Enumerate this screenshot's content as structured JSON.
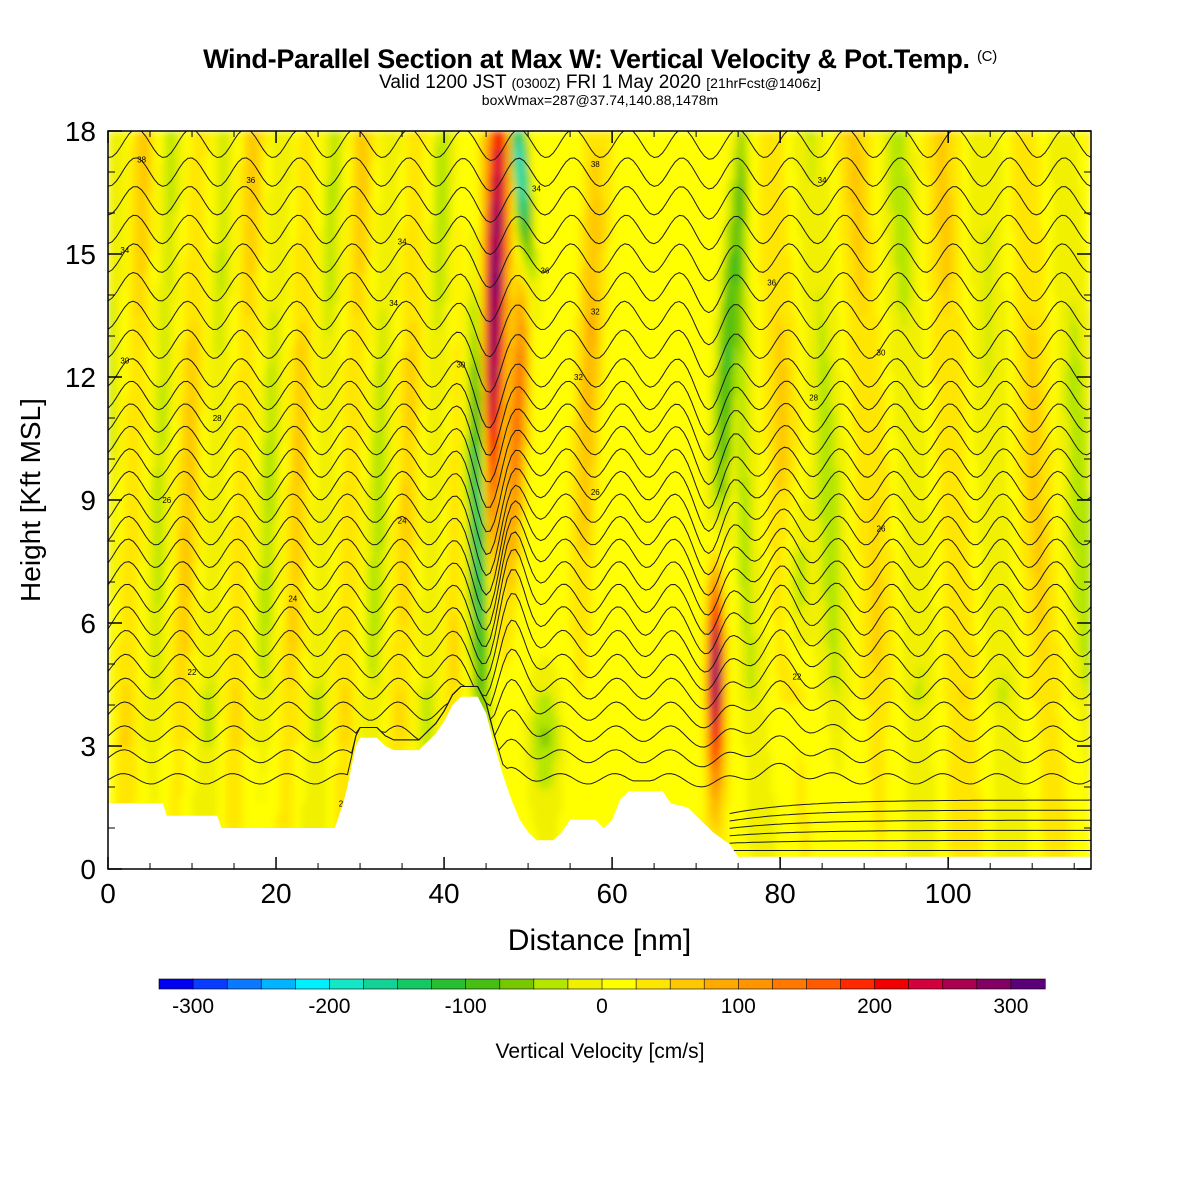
{
  "header": {
    "title": "Wind-Parallel Section at Max W: Vertical Velocity & Pot.Temp.",
    "copyright": "(C)",
    "valid_pre": "Valid 1200 JST",
    "valid_utc": "(0300Z)",
    "valid_date": "FRI 1 May 2020",
    "valid_fcst": "[21hrFcst@1406z]",
    "boxwmax": "boxWmax=287@37.74,140.88,1478m"
  },
  "chart_data": {
    "type": "heatmap",
    "xlabel": "Distance [nm]",
    "ylabel": "Height [Kft MSL]",
    "xlim": [
      0,
      117
    ],
    "ylim": [
      0,
      18
    ],
    "x_ticks": [
      "0",
      "20",
      "40",
      "60",
      "80",
      "100"
    ],
    "y_ticks": [
      "0",
      "3",
      "6",
      "9",
      "12",
      "15",
      "18"
    ],
    "colorbar": {
      "label": "Vertical Velocity [cm/s]",
      "tick_labels": [
        "-300",
        "-200",
        "-100",
        "0",
        "100",
        "200",
        "300"
      ],
      "levels": [
        -325,
        -300,
        -275,
        -250,
        -225,
        -200,
        -175,
        -150,
        -125,
        -100,
        -75,
        -50,
        -25,
        0,
        25,
        50,
        75,
        100,
        125,
        150,
        175,
        200,
        225,
        250,
        275,
        300,
        325
      ],
      "colors": [
        "#0000f0",
        "#0a3cff",
        "#0a78ff",
        "#00b4ff",
        "#00f0ff",
        "#14e6c8",
        "#14d296",
        "#14c864",
        "#28be32",
        "#46be14",
        "#78c800",
        "#b4e600",
        "#f0f000",
        "#ffff00",
        "#ffe600",
        "#ffc800",
        "#ffaa00",
        "#ff9600",
        "#ff7800",
        "#ff5a00",
        "#ff2800",
        "#f00000",
        "#d2003c",
        "#aa0050",
        "#820064",
        "#5a0078"
      ]
    },
    "terrain_kft": [
      [
        0,
        1.6
      ],
      [
        6.5,
        1.6
      ],
      [
        7,
        1.3
      ],
      [
        13,
        1.3
      ],
      [
        13.5,
        1.0
      ],
      [
        27,
        1.0
      ],
      [
        27.5,
        1.3
      ],
      [
        28,
        1.6
      ],
      [
        28.5,
        2.0
      ],
      [
        29,
        2.5
      ],
      [
        29.5,
        3.0
      ],
      [
        30,
        3.2
      ],
      [
        32,
        3.2
      ],
      [
        33,
        3.0
      ],
      [
        34,
        2.9
      ],
      [
        37,
        2.9
      ],
      [
        38,
        3.1
      ],
      [
        39,
        3.3
      ],
      [
        40,
        3.6
      ],
      [
        41,
        4.0
      ],
      [
        42,
        4.2
      ],
      [
        44,
        4.2
      ],
      [
        45,
        3.8
      ],
      [
        46,
        3.0
      ],
      [
        47,
        2.3
      ],
      [
        48,
        1.7
      ],
      [
        49,
        1.2
      ],
      [
        50,
        0.9
      ],
      [
        51,
        0.7
      ],
      [
        53,
        0.7
      ],
      [
        54,
        0.9
      ],
      [
        55,
        1.2
      ],
      [
        58,
        1.2
      ],
      [
        59,
        1.0
      ],
      [
        60,
        1.2
      ],
      [
        61,
        1.7
      ],
      [
        62,
        1.9
      ],
      [
        66,
        1.9
      ],
      [
        67,
        1.6
      ],
      [
        69,
        1.5
      ],
      [
        70,
        1.3
      ],
      [
        72,
        0.9
      ],
      [
        74,
        0.6
      ],
      [
        75,
        0.3
      ],
      [
        117,
        0.3
      ]
    ],
    "theta_contour_labels": [
      "16",
      "18",
      "20",
      "22",
      "24",
      "26",
      "28",
      "30",
      "32",
      "34",
      "36",
      "38"
    ],
    "vertical_velocity_features": [
      {
        "x": 45.5,
        "z_range": [
          0.9,
          18
        ],
        "peak_cm_s": 280
      },
      {
        "x": 72.3,
        "z_range": [
          1.5,
          8
        ],
        "peak_cm_s": 287
      },
      {
        "x": 44.3,
        "z_range": [
          3.5,
          13
        ],
        "peak_cm_s": -230
      },
      {
        "x": 49.5,
        "z_range": [
          13,
          18
        ],
        "peak_cm_s": -200
      }
    ]
  }
}
